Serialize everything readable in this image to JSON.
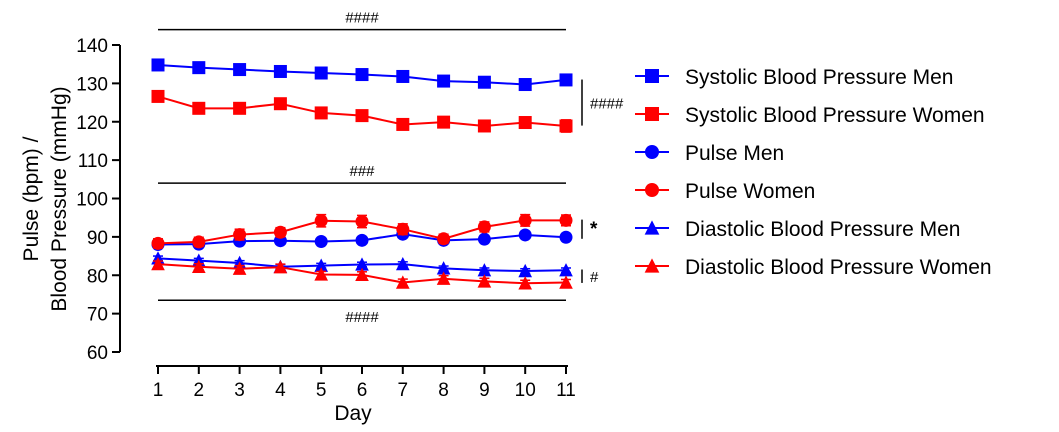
{
  "chart_data": {
    "type": "line",
    "title": "",
    "xlabel": "Day",
    "ylabel_line1": "Pulse (bpm) /",
    "ylabel_line2": "Blood Pressure (mmHg)",
    "x": [
      1,
      2,
      3,
      4,
      5,
      6,
      7,
      8,
      9,
      10,
      11
    ],
    "xticks": [
      "1",
      "2",
      "3",
      "4",
      "5",
      "6",
      "7",
      "8",
      "9",
      "10",
      "11"
    ],
    "yticks": [
      "60",
      "70",
      "80",
      "90",
      "100",
      "110",
      "120",
      "130",
      "140"
    ],
    "ylim": [
      60,
      140
    ],
    "xlim": [
      1,
      11
    ],
    "grid": false,
    "legend_position": "right",
    "series": [
      {
        "name": "Systolic Blood Pressure Men",
        "color": "#0000ff",
        "marker": "square",
        "values": [
          134.8,
          134.1,
          133.6,
          133.1,
          132.7,
          132.3,
          131.8,
          130.6,
          130.3,
          129.7,
          130.9
        ],
        "error": [
          0.8,
          0.7,
          0.7,
          0.7,
          0.7,
          0.7,
          0.7,
          0.8,
          0.7,
          0.8,
          0.8
        ]
      },
      {
        "name": "Systolic Blood Pressure Women",
        "color": "#ff0000",
        "marker": "square",
        "values": [
          126.6,
          123.5,
          123.5,
          124.7,
          122.3,
          121.6,
          119.3,
          119.9,
          118.9,
          119.8,
          118.9
        ],
        "error": [
          1.2,
          1.0,
          1.0,
          1.1,
          1.0,
          1.1,
          1.0,
          1.2,
          1.1,
          1.0,
          1.6
        ]
      },
      {
        "name": "Pulse Men",
        "color": "#0000ff",
        "marker": "circle",
        "values": [
          88.0,
          88.1,
          88.9,
          89.0,
          88.8,
          89.1,
          90.7,
          89.1,
          89.4,
          90.5,
          89.9
        ],
        "error": [
          0.8,
          0.8,
          0.8,
          0.8,
          0.8,
          0.8,
          0.9,
          0.8,
          0.8,
          0.9,
          0.9
        ]
      },
      {
        "name": "Pulse Women",
        "color": "#ff0000",
        "marker": "circle",
        "values": [
          88.3,
          88.7,
          90.6,
          91.2,
          94.2,
          94.0,
          92.0,
          89.5,
          92.6,
          94.3,
          94.3
        ],
        "error": [
          1.2,
          1.2,
          1.4,
          1.2,
          1.6,
          1.6,
          1.4,
          1.2,
          1.3,
          1.5,
          1.4
        ]
      },
      {
        "name": "Diastolic Blood Pressure Men",
        "color": "#0000ff",
        "marker": "triangle",
        "values": [
          84.4,
          83.8,
          83.2,
          82.2,
          82.5,
          82.8,
          82.9,
          81.8,
          81.3,
          81.1,
          81.3
        ],
        "error": [
          0.6,
          0.6,
          0.6,
          0.6,
          0.6,
          0.6,
          0.6,
          0.6,
          0.6,
          0.6,
          0.6
        ]
      },
      {
        "name": "Diastolic Blood Pressure Women",
        "color": "#ff0000",
        "marker": "triangle",
        "values": [
          82.9,
          82.2,
          81.7,
          82.1,
          80.2,
          80.1,
          78.1,
          79.1,
          78.4,
          77.9,
          78.1
        ],
        "error": [
          0.8,
          0.8,
          0.8,
          0.8,
          0.8,
          0.8,
          0.9,
          0.8,
          0.8,
          0.8,
          0.8
        ]
      }
    ],
    "annotations": [
      {
        "label": "####",
        "kind": "hline",
        "y": 144,
        "x_from": 1,
        "x_to": 11
      },
      {
        "label": "###",
        "kind": "hline",
        "y": 104,
        "x_from": 1,
        "x_to": 11
      },
      {
        "label": "####",
        "kind": "hline",
        "y": 73.5,
        "x_from": 1,
        "x_to": 11
      },
      {
        "label": "####",
        "kind": "vline",
        "y_from": 119,
        "y_to": 131
      },
      {
        "label": "*",
        "kind": "vline",
        "y_from": 89.5,
        "y_to": 94.5
      },
      {
        "label": "#",
        "kind": "vline",
        "y_from": 78,
        "y_to": 81.5
      }
    ]
  }
}
